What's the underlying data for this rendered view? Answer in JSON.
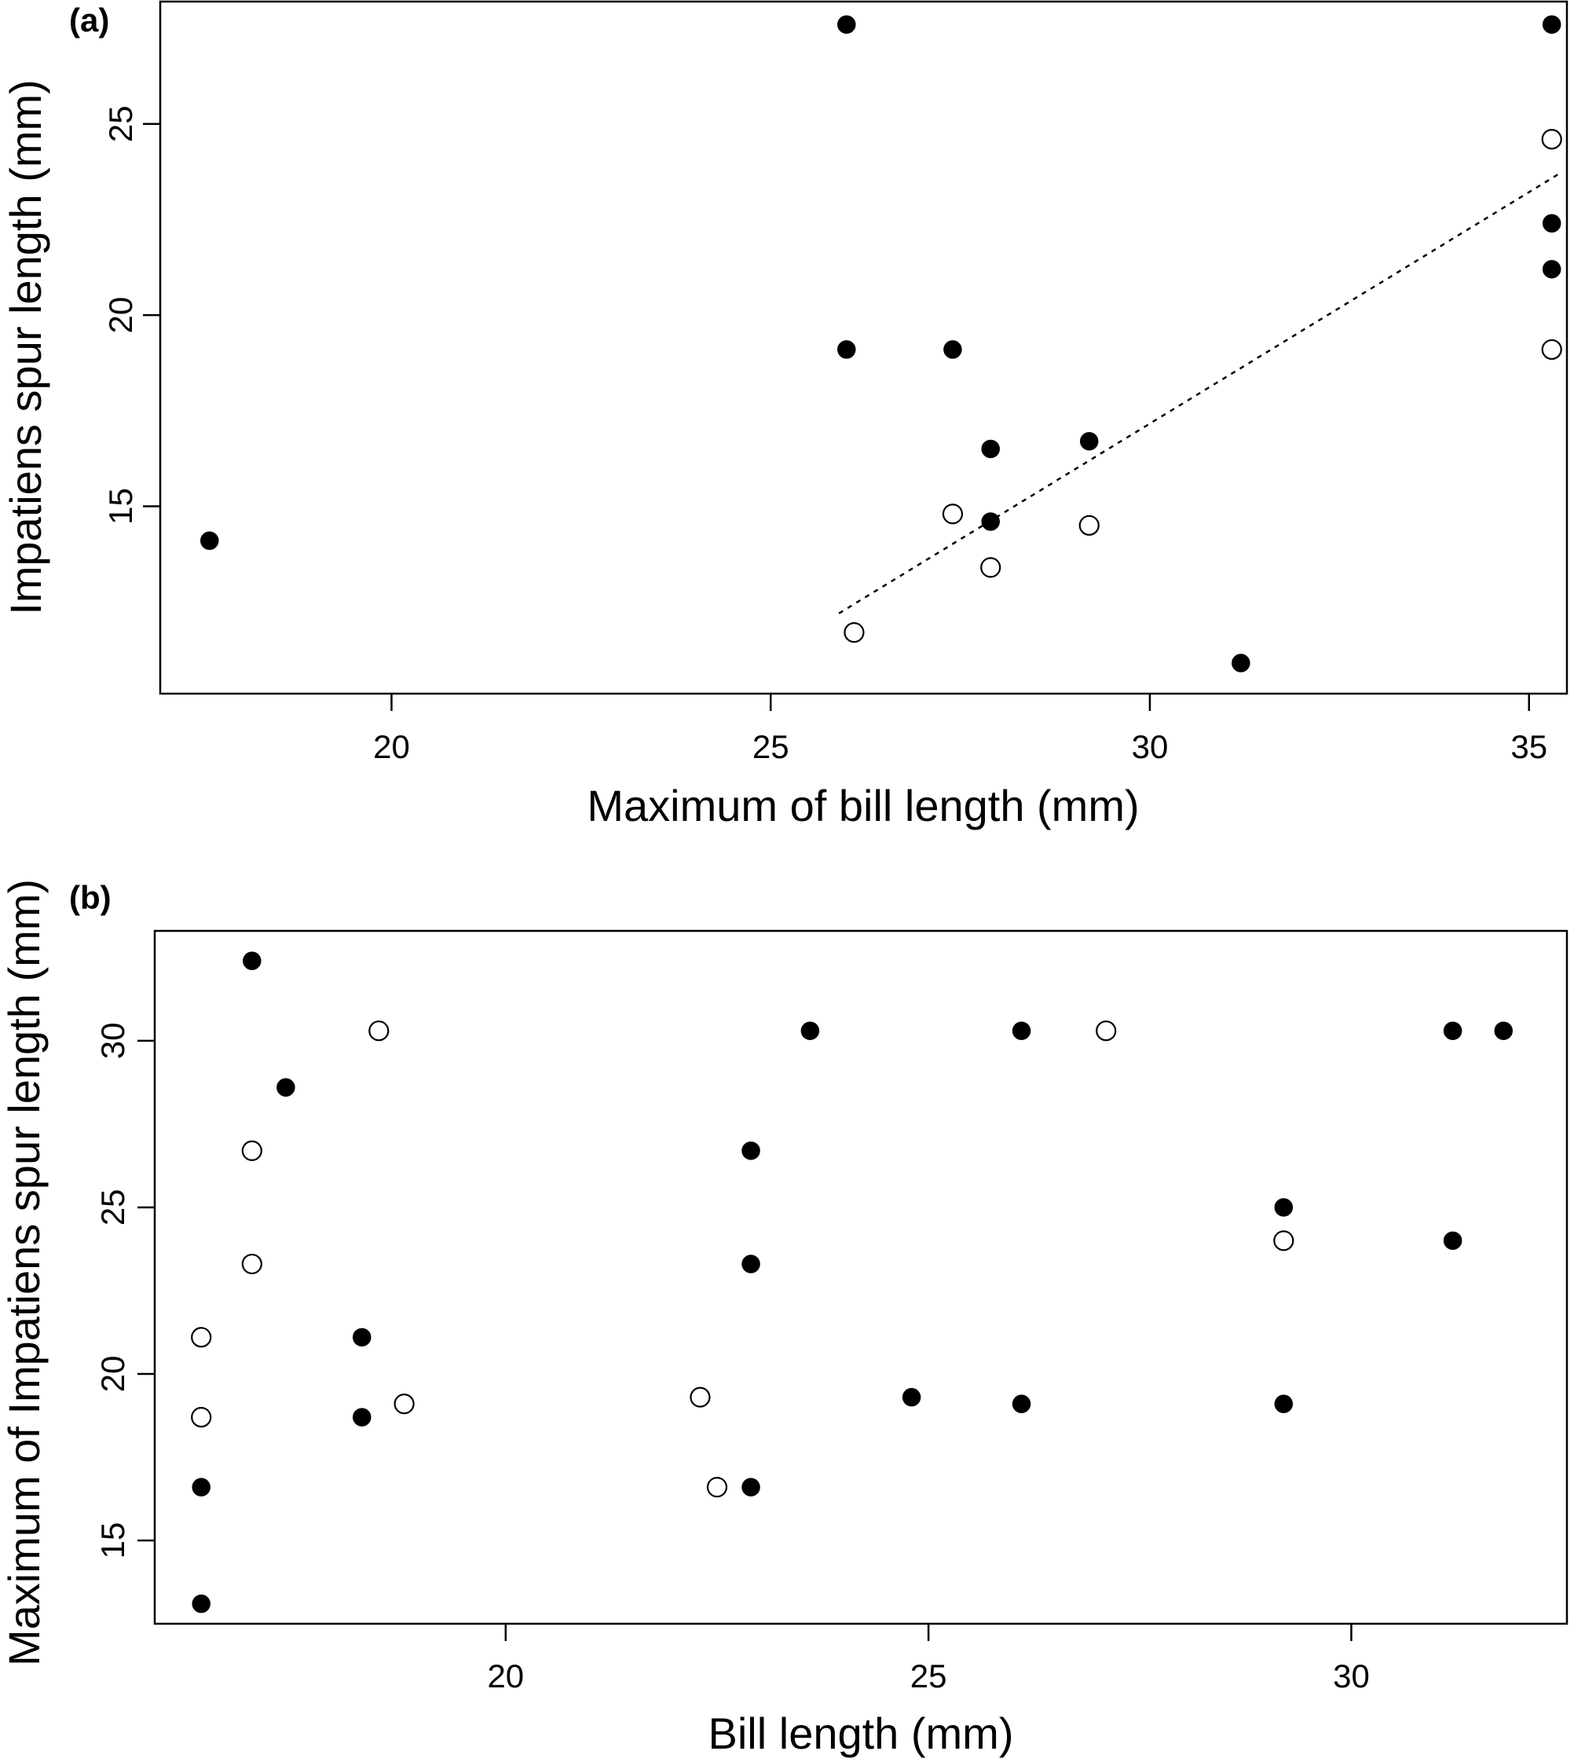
{
  "colors": {
    "filled": "#000000",
    "open_fill": "#ffffff",
    "stroke": "#000000",
    "background": "#ffffff"
  },
  "chart_data": [
    {
      "type": "scatter",
      "panel_label": "(a)",
      "xlabel": "Maximum of bill length (mm)",
      "ylabel": "Impatiens spur length (mm)",
      "xlim": [
        16.95,
        35.5
      ],
      "ylim": [
        10.1,
        28.2
      ],
      "xticks": [
        20,
        25,
        30,
        35
      ],
      "yticks": [
        15,
        20,
        25
      ],
      "grid": false,
      "legend": "none",
      "series": [
        {
          "marker": "filled-circle",
          "points": [
            {
              "x": 17.6,
              "y": 14.1
            },
            {
              "x": 26.0,
              "y": 27.6
            },
            {
              "x": 26.0,
              "y": 19.1
            },
            {
              "x": 27.4,
              "y": 19.1
            },
            {
              "x": 27.9,
              "y": 16.5
            },
            {
              "x": 27.9,
              "y": 14.6
            },
            {
              "x": 29.2,
              "y": 16.7
            },
            {
              "x": 31.2,
              "y": 10.9
            },
            {
              "x": 35.3,
              "y": 27.6
            },
            {
              "x": 35.3,
              "y": 22.4
            },
            {
              "x": 35.3,
              "y": 21.2
            }
          ]
        },
        {
          "marker": "open-circle",
          "points": [
            {
              "x": 26.1,
              "y": 11.7
            },
            {
              "x": 27.4,
              "y": 14.8
            },
            {
              "x": 27.9,
              "y": 13.4
            },
            {
              "x": 29.2,
              "y": 14.5
            },
            {
              "x": 35.3,
              "y": 24.6
            },
            {
              "x": 35.3,
              "y": 19.1
            }
          ]
        }
      ],
      "trendline": {
        "style": "dotted",
        "x": [
          25.9,
          35.4
        ],
        "y": [
          12.2,
          23.7
        ]
      }
    },
    {
      "type": "scatter",
      "panel_label": "(b)",
      "xlabel": "Bill length (mm)",
      "ylabel": "Maximum of Impatiens spur length (mm)",
      "xlim": [
        15.85,
        32.55
      ],
      "ylim": [
        12.5,
        33.3
      ],
      "xticks": [
        20,
        25,
        30
      ],
      "yticks": [
        15,
        20,
        25,
        30
      ],
      "grid": false,
      "legend": "none",
      "series": [
        {
          "marker": "filled-circle",
          "points": [
            {
              "x": 17.0,
              "y": 32.4
            },
            {
              "x": 17.4,
              "y": 28.6
            },
            {
              "x": 16.4,
              "y": 16.6
            },
            {
              "x": 16.4,
              "y": 13.1
            },
            {
              "x": 18.3,
              "y": 21.1
            },
            {
              "x": 18.3,
              "y": 18.7
            },
            {
              "x": 23.6,
              "y": 30.3
            },
            {
              "x": 22.9,
              "y": 26.7
            },
            {
              "x": 22.9,
              "y": 23.3
            },
            {
              "x": 22.9,
              "y": 16.6
            },
            {
              "x": 24.8,
              "y": 19.3
            },
            {
              "x": 26.1,
              "y": 30.3
            },
            {
              "x": 26.1,
              "y": 19.1
            },
            {
              "x": 29.2,
              "y": 25.0
            },
            {
              "x": 29.2,
              "y": 19.1
            },
            {
              "x": 31.2,
              "y": 30.3
            },
            {
              "x": 31.8,
              "y": 30.3
            },
            {
              "x": 31.2,
              "y": 24.0
            }
          ]
        },
        {
          "marker": "open-circle",
          "points": [
            {
              "x": 18.5,
              "y": 30.3
            },
            {
              "x": 17.0,
              "y": 26.7
            },
            {
              "x": 17.0,
              "y": 23.3
            },
            {
              "x": 16.4,
              "y": 21.1
            },
            {
              "x": 16.4,
              "y": 18.7
            },
            {
              "x": 18.8,
              "y": 19.1
            },
            {
              "x": 22.3,
              "y": 19.3
            },
            {
              "x": 22.5,
              "y": 16.6
            },
            {
              "x": 27.1,
              "y": 30.3
            },
            {
              "x": 29.2,
              "y": 24.0
            }
          ]
        }
      ]
    }
  ]
}
